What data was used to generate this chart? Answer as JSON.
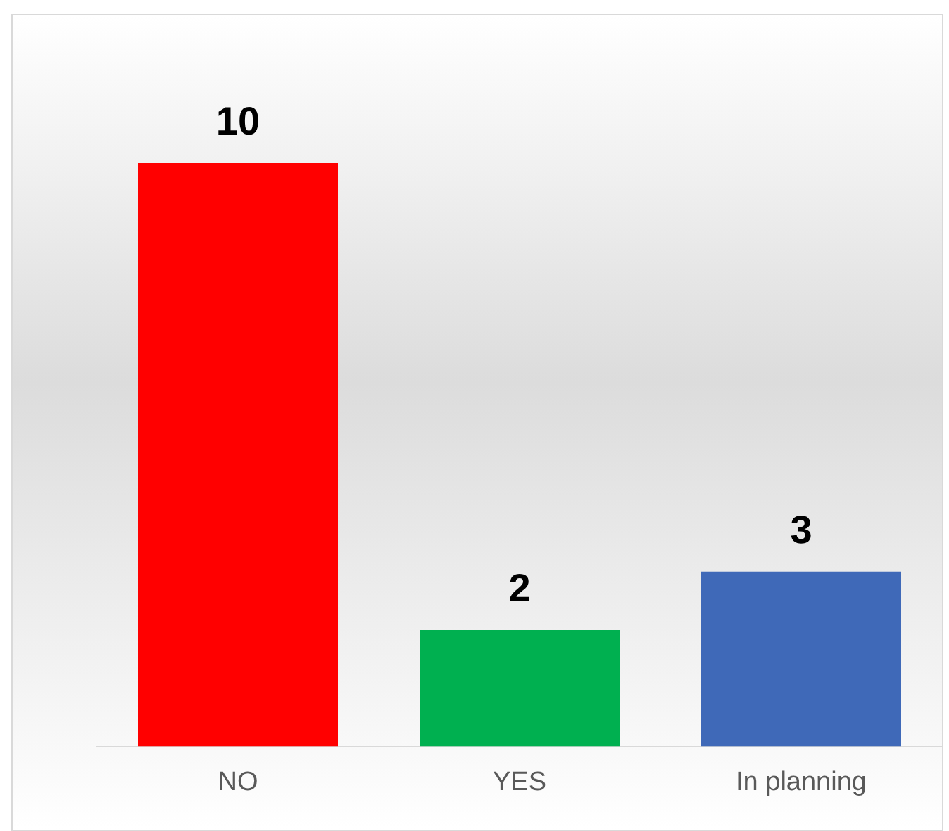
{
  "chart_data": {
    "type": "bar",
    "categories": [
      "NO",
      "YES",
      "In planning"
    ],
    "values": [
      10,
      2,
      3
    ],
    "colors": [
      "#ff0000",
      "#00b050",
      "#3f69b8"
    ],
    "data_labels": true,
    "grid": false,
    "legend": false
  }
}
